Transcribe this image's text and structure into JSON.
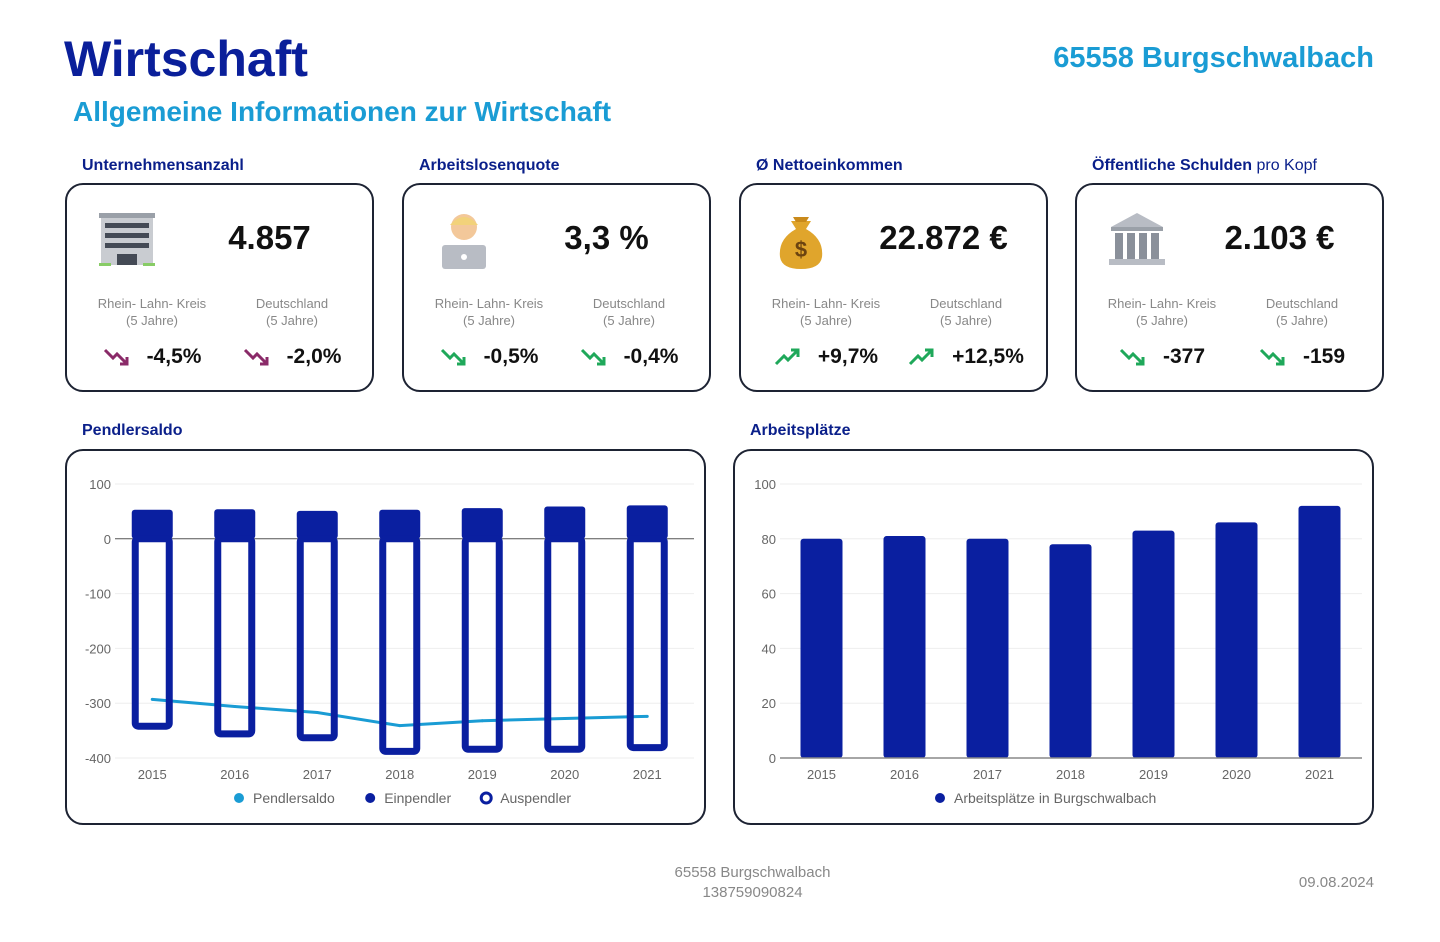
{
  "header": {
    "title": "Wirtschaft",
    "location": "65558 Burgschwalbach",
    "subtitle": "Allgemeine Informationen zur Wirtschaft"
  },
  "kpis": [
    {
      "label": "Unternehmensanzahl",
      "label_suffix": "",
      "icon": "office-building-icon",
      "value": "4.857",
      "cmp1": "Rhein- Lahn- Kreis",
      "cmp2": "Deutschland",
      "period": "(5 Jahre)",
      "chg1": "-4,5%",
      "chg2": "-2,0%",
      "trend": "down",
      "trend_color": "#8a2a68"
    },
    {
      "label": "Arbeitslosenquote",
      "label_suffix": "",
      "icon": "person-laptop-icon",
      "value": "3,3 %",
      "cmp1": "Rhein- Lahn- Kreis",
      "cmp2": "Deutschland",
      "period": "(5 Jahre)",
      "chg1": "-0,5%",
      "chg2": "-0,4%",
      "trend": "down",
      "trend_color": "#1fa85a"
    },
    {
      "label": "Ø Nettoeinkommen",
      "label_suffix": "",
      "icon": "money-bag-icon",
      "value": "22.872 €",
      "cmp1": "Rhein- Lahn- Kreis",
      "cmp2": "Deutschland",
      "period": "(5 Jahre)",
      "chg1": "+9,7%",
      "chg2": "+12,5%",
      "trend": "up",
      "trend_color": "#1fa85a"
    },
    {
      "label": "Öffentliche Schulden",
      "label_suffix": "pro Kopf",
      "icon": "bank-building-icon",
      "value": "2.103 €",
      "cmp1": "Rhein- Lahn- Kreis",
      "cmp2": "Deutschland",
      "period": "(5 Jahre)",
      "chg1": "-377",
      "chg2": "-159",
      "trend": "down",
      "trend_color": "#1fa85a"
    }
  ],
  "chart_data": [
    {
      "type": "bar",
      "title": "Pendlersaldo",
      "categories": [
        "2015",
        "2016",
        "2017",
        "2018",
        "2019",
        "2020",
        "2021"
      ],
      "ylim": [
        -400,
        100
      ],
      "yticks": [
        100,
        0,
        -100,
        -200,
        -300,
        -400
      ],
      "grid": true,
      "legend": "bottom",
      "series": [
        {
          "name": "Pendlersaldo",
          "kind": "line",
          "color": "#1a9cd4",
          "values": [
            -293,
            -306,
            -317,
            -341,
            -332,
            -328,
            -324
          ]
        },
        {
          "name": "Einpendler",
          "kind": "bar",
          "color": "#0a1fa0",
          "values": [
            53,
            54,
            51,
            53,
            56,
            59,
            61
          ]
        },
        {
          "name": "Auspendler",
          "kind": "bar-outline",
          "color": "#0a1fa0",
          "values": [
            -342,
            -356,
            -363,
            -388,
            -384,
            -384,
            -381
          ]
        }
      ]
    },
    {
      "type": "bar",
      "title": "Arbeitsplätze",
      "categories": [
        "2015",
        "2016",
        "2017",
        "2018",
        "2019",
        "2020",
        "2021"
      ],
      "ylim": [
        0,
        100
      ],
      "yticks": [
        0,
        20,
        40,
        60,
        80,
        100
      ],
      "grid": true,
      "legend": "bottom",
      "series": [
        {
          "name": "Arbeitsplätze in Burgschwalbach",
          "color": "#0a1fa0",
          "values": [
            80,
            81,
            80,
            78,
            83,
            86,
            92
          ]
        }
      ]
    }
  ],
  "footer": {
    "location": "65558 Burgschwalbach",
    "id": "138759090824",
    "date": "09.08.2024"
  }
}
